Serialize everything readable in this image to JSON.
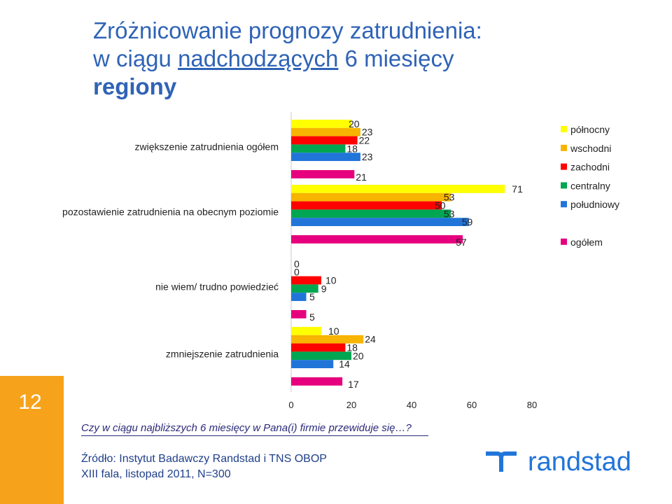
{
  "title": {
    "line1": "Zróżnicowanie prognozy zatrudnienia:",
    "line2_prefix": "w ciągu ",
    "line2_underlined": "nadchodzących",
    "line2_suffix": " 6 miesięcy",
    "line3": "regiony"
  },
  "page_number": "12",
  "question": "Czy w ciągu najbliższych 6 miesięcy w Pana(i) firmie przewiduje się…?",
  "source": {
    "line1": "Źródło: Instytut Badawczy Randstad i TNS OBOP",
    "line2": "XIII fala, listopad 2011, N=300"
  },
  "logo": {
    "text": "randstad",
    "color": "#2175d9"
  },
  "chart_data": {
    "type": "bar",
    "orientation": "horizontal",
    "categories": [
      "zwiększenie zatrudnienia ogółem",
      "pozostawienie zatrudnienia na obecnym poziomie",
      "nie wiem/ trudno powiedzieć",
      "zmniejszenie zatrudnienia"
    ],
    "series": [
      {
        "name": "północny",
        "color": "#ffff00",
        "values": [
          20,
          71,
          0,
          10
        ]
      },
      {
        "name": "wschodni",
        "color": "#f7b400",
        "values": [
          23,
          53,
          0,
          24
        ]
      },
      {
        "name": "zachodni",
        "color": "#ff0000",
        "values": [
          22,
          50,
          10,
          18
        ]
      },
      {
        "name": "centralny",
        "color": "#00a651",
        "values": [
          18,
          53,
          9,
          20
        ]
      },
      {
        "name": "południowy",
        "color": "#2175d9",
        "values": [
          23,
          59,
          5,
          14
        ]
      },
      {
        "name": "ogółem",
        "color": "#e6007e",
        "values": [
          21,
          57,
          5,
          17
        ]
      }
    ],
    "xlim": [
      0,
      80
    ],
    "xticks": [
      "0",
      "20",
      "40",
      "60",
      "80"
    ],
    "legend_position": "right"
  }
}
